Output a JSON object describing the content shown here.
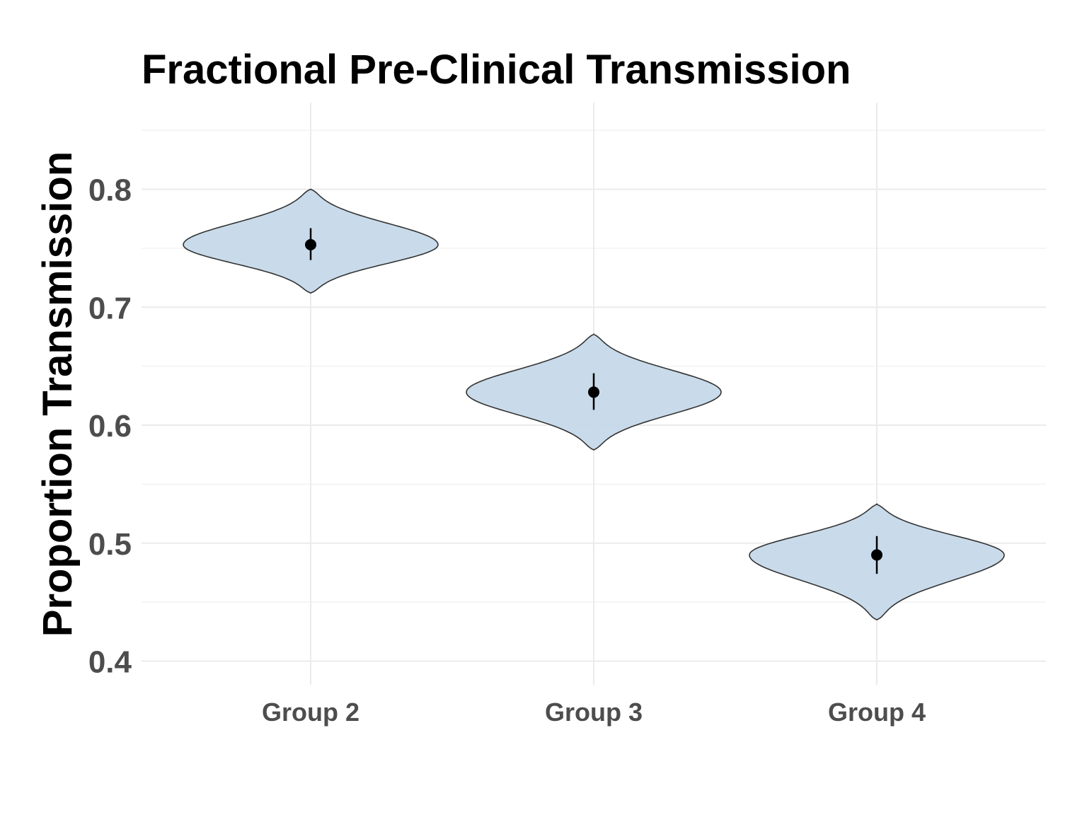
{
  "chart_data": {
    "type": "violin",
    "title": "Fractional Pre-Clinical Transmission",
    "xlabel": "",
    "ylabel": "Proportion Transmission",
    "categories": [
      "Group 2",
      "Group 3",
      "Group 4"
    ],
    "ylim": [
      0.38,
      0.855
    ],
    "yticks": [
      0.4,
      0.5,
      0.6,
      0.7,
      0.8
    ],
    "ytick_labels": [
      "0.4",
      "0.5",
      "0.6",
      "0.7",
      "0.8"
    ],
    "grid": true,
    "violins": [
      {
        "category": "Group 2",
        "min": 0.712,
        "max": 0.8,
        "median": 0.753,
        "ci": [
          0.74,
          0.767
        ]
      },
      {
        "category": "Group 3",
        "min": 0.579,
        "max": 0.677,
        "median": 0.628,
        "ci": [
          0.613,
          0.644
        ]
      },
      {
        "category": "Group 4",
        "min": 0.435,
        "max": 0.533,
        "median": 0.49,
        "ci": [
          0.474,
          0.506
        ]
      }
    ],
    "colors": {
      "violin_fill": "#c6d9e9",
      "violin_stroke": "#333333",
      "point": "#000000",
      "grid_major": "#ebebeb",
      "grid_minor": "#f2f2f2"
    }
  }
}
